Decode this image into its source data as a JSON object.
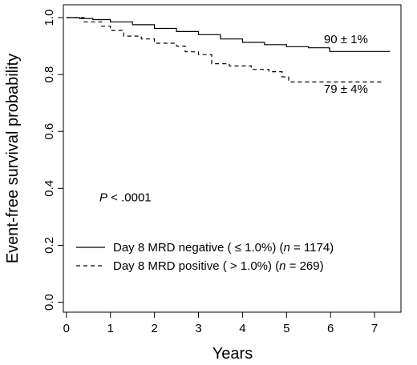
{
  "chart_data": {
    "type": "line",
    "title": "",
    "xlabel": "Years",
    "ylabel": "Event-free survival probability",
    "xlim": [
      0,
      7.5
    ],
    "ylim": [
      0,
      1.0
    ],
    "x_ticks": [
      "0",
      "1",
      "2",
      "3",
      "4",
      "5",
      "6",
      "7"
    ],
    "y_ticks": [
      "0.0",
      "0.2",
      "0.4",
      "0.6",
      "0.8",
      "1.0"
    ],
    "grid": false,
    "legend_position": "bottom-left",
    "series": [
      {
        "name": "Day 8 MRD negative (≤1.0%) (n = 1174)",
        "legend": {
          "prefix": "Day 8 MRD negative ( ",
          "op": "≤",
          "value": " 1.0%) (",
          "n": "n",
          "eq": " = 1174)"
        },
        "style": "solid",
        "x": [
          0,
          0.3,
          0.6,
          1.0,
          1.5,
          2.0,
          2.5,
          3.0,
          3.5,
          4.0,
          4.5,
          5.0,
          5.5,
          5.97,
          5.98,
          7.35
        ],
        "y": [
          1.0,
          0.997,
          0.993,
          0.985,
          0.975,
          0.962,
          0.951,
          0.94,
          0.925,
          0.913,
          0.905,
          0.898,
          0.894,
          0.892,
          0.881,
          0.881
        ]
      },
      {
        "name": "Day 8 MRD positive (>1.0%) (n = 269)",
        "legend": {
          "prefix": "Day 8 MRD positive ( ",
          "op": ">",
          "value": " 1.0%) (",
          "n": "n",
          "eq": " = 269)"
        },
        "style": "dashed",
        "x": [
          0,
          0.4,
          0.8,
          1.0,
          1.3,
          1.7,
          2.0,
          2.5,
          2.7,
          3.0,
          3.3,
          3.7,
          4.2,
          4.6,
          4.9,
          5.05,
          5.4,
          6.0,
          7.15
        ],
        "y": [
          1.0,
          0.985,
          0.97,
          0.955,
          0.935,
          0.925,
          0.91,
          0.9,
          0.88,
          0.87,
          0.838,
          0.83,
          0.818,
          0.81,
          0.792,
          0.774,
          0.774,
          0.774,
          0.774
        ]
      }
    ],
    "annotations": [
      {
        "text": "90 ± 1%",
        "x": 6.35,
        "y": 0.91
      },
      {
        "text": "79 ± 4%",
        "x": 6.35,
        "y": 0.735
      }
    ],
    "p_value": {
      "label": "P",
      "rest": " < .0001",
      "x": 0.75,
      "y": 0.355
    }
  }
}
